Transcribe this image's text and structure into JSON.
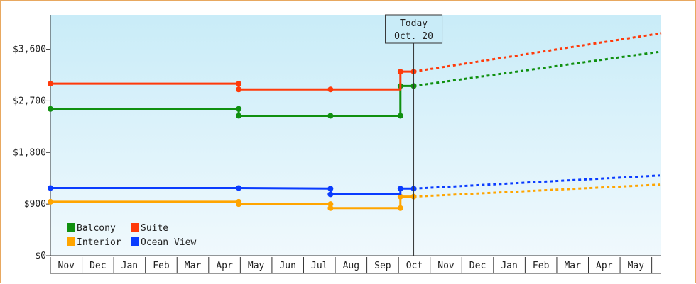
{
  "chart_data": {
    "type": "line",
    "y_ticks": [
      "$0",
      "$900",
      "$1,800",
      "$2,700",
      "$3,600"
    ],
    "y_tick_values": [
      0,
      900,
      1800,
      2700,
      3600
    ],
    "ylim": [
      0,
      4200
    ],
    "months": [
      "Nov",
      "Dec",
      "Jan",
      "Feb",
      "Mar",
      "Apr",
      "May",
      "Jun",
      "Jul",
      "Aug",
      "Sep",
      "Oct",
      "Nov",
      "Dec",
      "Jan",
      "Feb",
      "Mar",
      "Apr",
      "May"
    ],
    "x_domain": [
      0,
      19.3
    ],
    "today": {
      "line1": "Today",
      "line2": "Oct. 20",
      "x": 11.48
    },
    "legend_rows": [
      [
        "Balcony",
        "Suite"
      ],
      [
        "Interior",
        "Ocean View"
      ]
    ],
    "series": [
      {
        "name": "Balcony",
        "color": "#109010",
        "actual": [
          [
            0,
            2560
          ],
          [
            5.95,
            2560
          ],
          [
            5.95,
            2440
          ],
          [
            8.85,
            2440
          ],
          [
            11.06,
            2440
          ],
          [
            11.06,
            2960
          ],
          [
            11.48,
            2960
          ]
        ],
        "markers": [
          [
            0,
            2560
          ],
          [
            5.95,
            2560
          ],
          [
            5.95,
            2440
          ],
          [
            8.85,
            2440
          ],
          [
            11.06,
            2440
          ],
          [
            11.06,
            2960
          ],
          [
            11.48,
            2960
          ]
        ],
        "forecast": [
          [
            11.48,
            2960
          ],
          [
            19.3,
            3560
          ]
        ]
      },
      {
        "name": "Suite",
        "color": "#ff3a0a",
        "actual": [
          [
            0,
            3000
          ],
          [
            5.95,
            3000
          ],
          [
            5.95,
            2900
          ],
          [
            8.85,
            2900
          ],
          [
            11.06,
            2900
          ],
          [
            11.06,
            3210
          ],
          [
            11.48,
            3210
          ]
        ],
        "markers": [
          [
            0,
            3000
          ],
          [
            5.95,
            3000
          ],
          [
            5.95,
            2900
          ],
          [
            8.85,
            2900
          ],
          [
            11.06,
            3210
          ],
          [
            11.48,
            3210
          ]
        ],
        "forecast": [
          [
            11.48,
            3210
          ],
          [
            19.3,
            3880
          ]
        ]
      },
      {
        "name": "Interior",
        "color": "#ffa500",
        "actual": [
          [
            0,
            940
          ],
          [
            5.95,
            940
          ],
          [
            5.95,
            900
          ],
          [
            8.85,
            900
          ],
          [
            8.85,
            830
          ],
          [
            11.06,
            830
          ],
          [
            11.06,
            1030
          ],
          [
            11.48,
            1030
          ]
        ],
        "markers": [
          [
            0,
            940
          ],
          [
            5.95,
            940
          ],
          [
            5.95,
            900
          ],
          [
            8.85,
            900
          ],
          [
            8.85,
            830
          ],
          [
            11.06,
            830
          ],
          [
            11.06,
            1030
          ],
          [
            11.48,
            1030
          ]
        ],
        "forecast": [
          [
            11.48,
            1030
          ],
          [
            19.3,
            1240
          ]
        ]
      },
      {
        "name": "Ocean View",
        "color": "#0a3cff",
        "actual": [
          [
            0,
            1180
          ],
          [
            5.95,
            1180
          ],
          [
            8.85,
            1170
          ],
          [
            8.85,
            1070
          ],
          [
            11.06,
            1070
          ],
          [
            11.06,
            1170
          ],
          [
            11.48,
            1170
          ]
        ],
        "markers": [
          [
            0,
            1180
          ],
          [
            5.95,
            1180
          ],
          [
            8.85,
            1170
          ],
          [
            8.85,
            1070
          ],
          [
            11.06,
            1170
          ],
          [
            11.48,
            1170
          ]
        ],
        "forecast": [
          [
            11.48,
            1170
          ],
          [
            19.3,
            1400
          ]
        ]
      }
    ]
  }
}
